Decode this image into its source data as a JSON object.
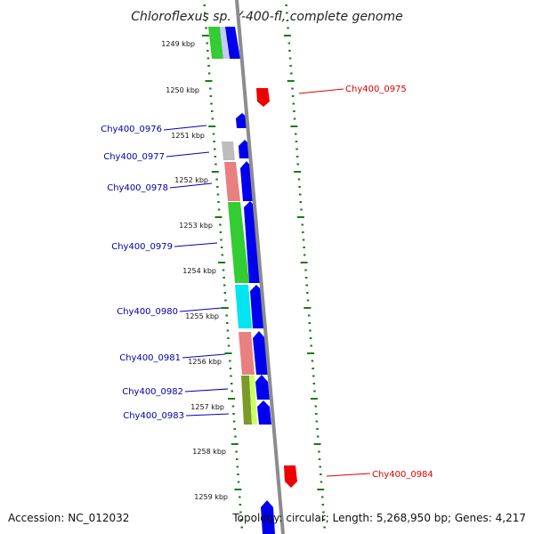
{
  "title": "Chloroflexus sp. Y-400-fl, complete genome",
  "footer": {
    "accession": "Accession: NC_012032",
    "summary": "Topology: circular; Length: 5,268,950 bp; Genes: 4,217"
  },
  "ticks": [
    "1249 kbp",
    "1250 kbp",
    "1251 kbp",
    "1252 kbp",
    "1253 kbp",
    "1254 kbp",
    "1255 kbp",
    "1256 kbp",
    "1257 kbp",
    "1258 kbp",
    "1259 kbp"
  ],
  "genes": [
    {
      "label": "Chy400_0975",
      "strand": "reverse",
      "color": "#dd0000"
    },
    {
      "label": "Chy400_0976",
      "strand": "forward",
      "color": "#0000dd"
    },
    {
      "label": "Chy400_0977",
      "strand": "forward",
      "color": "#0000dd"
    },
    {
      "label": "Chy400_0978",
      "strand": "forward",
      "color": "#0000dd"
    },
    {
      "label": "Chy400_0979",
      "strand": "forward",
      "color": "#0000dd"
    },
    {
      "label": "Chy400_0980",
      "strand": "forward",
      "color": "#0000dd"
    },
    {
      "label": "Chy400_0981",
      "strand": "forward",
      "color": "#0000dd"
    },
    {
      "label": "Chy400_0982",
      "strand": "forward",
      "color": "#0000dd"
    },
    {
      "label": "Chy400_0983",
      "strand": "forward",
      "color": "#0000dd"
    },
    {
      "label": "Chy400_0984",
      "strand": "reverse",
      "color": "#dd0000"
    }
  ],
  "colors": {
    "forward": "#0000ee",
    "reverse": "#ee0000",
    "backbone": "#8c8c8c",
    "tick": "#1a7a1a",
    "cog_green": "#33cc33",
    "cog_salmon": "#e88080",
    "cog_cyan": "#00e5ee",
    "cog_grey": "#bdbdbd",
    "cog_olive": "#7a9a2a",
    "cog_lime": "#ccff66",
    "cog_lavender": "#c8c8ff"
  }
}
